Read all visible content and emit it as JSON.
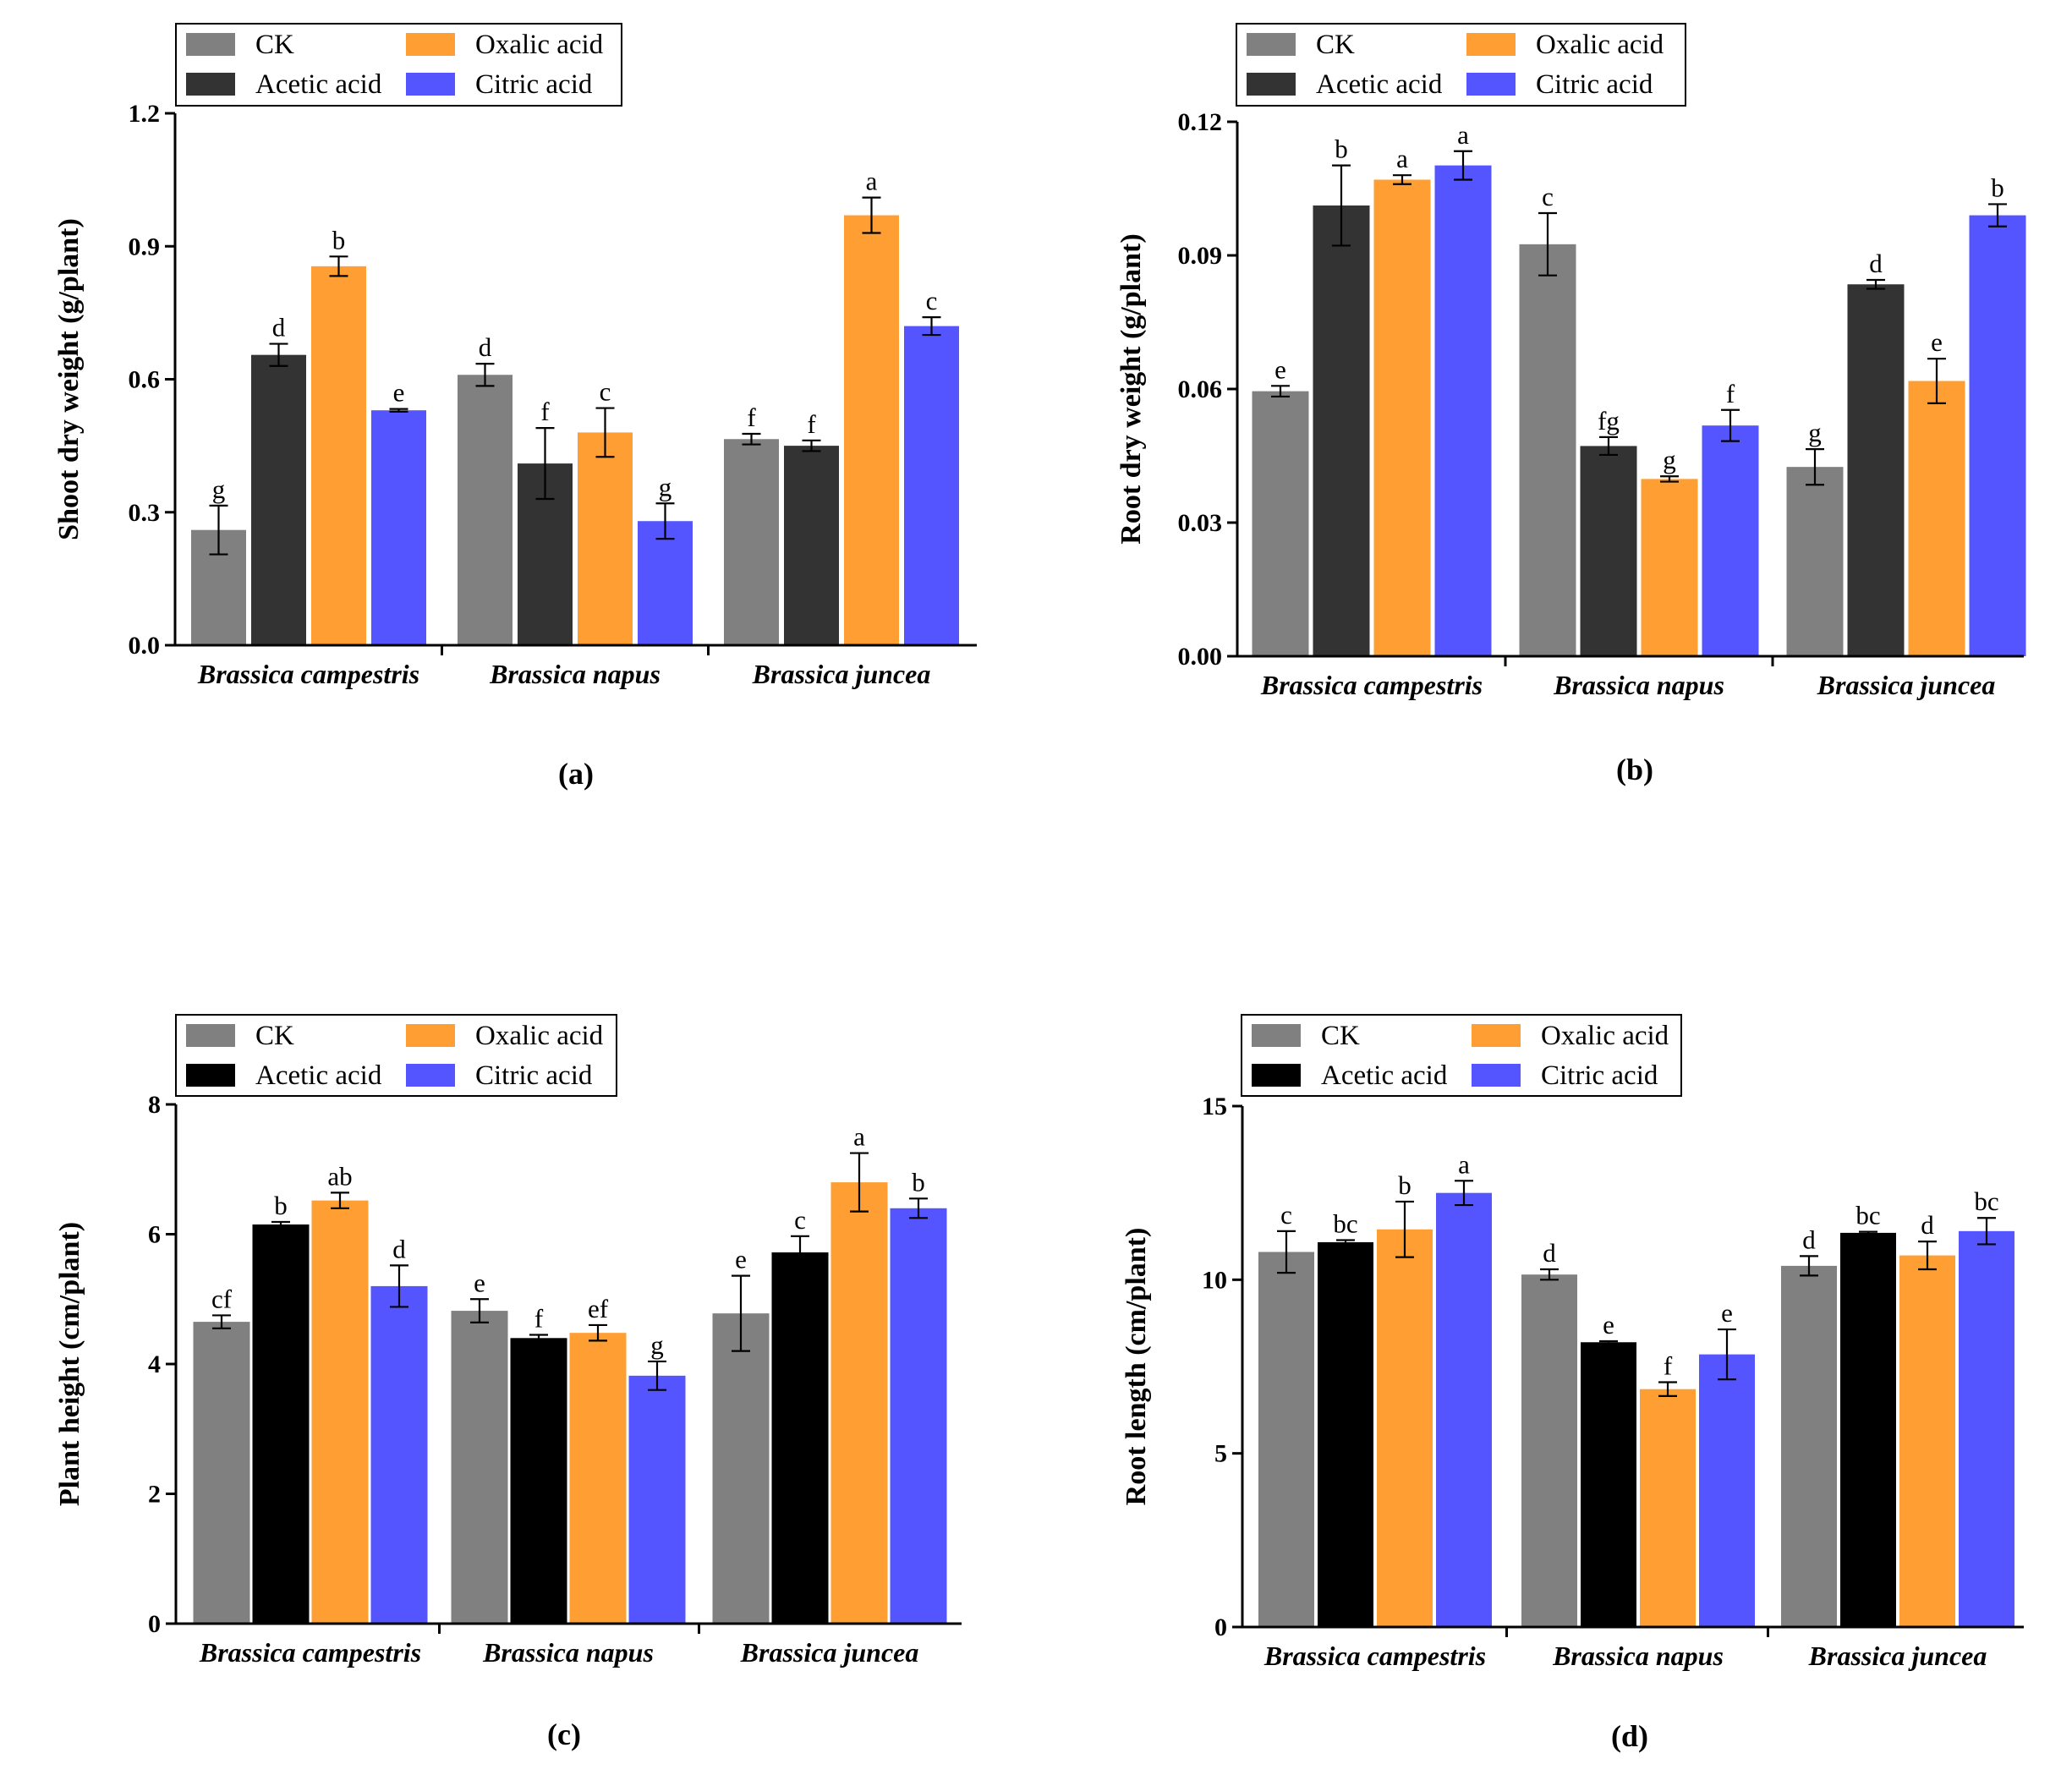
{
  "colors": {
    "gray": "#808080",
    "dark": "#333333",
    "black": "#000000",
    "orange": "#FF9F33",
    "blue": "#5555FF"
  },
  "chart_data": [
    {
      "type": "bar",
      "panel": "(a)",
      "ylabel": "Shoot dry weight (g/plant)",
      "ylim": [
        0,
        1.2
      ],
      "ticks": [
        0.0,
        0.3,
        0.6,
        0.9,
        1.2
      ],
      "tick_labels": [
        "0.0",
        "0.3",
        "0.6",
        "0.9",
        "1.2"
      ],
      "categories": [
        "Brassica campestris",
        "Brassica napus",
        "Brassica juncea"
      ],
      "legend": [
        "CK",
        "Acetic acid",
        "Oxalic acid",
        "Citric acid"
      ],
      "series": [
        {
          "name": "CK",
          "color": "#808080",
          "values": [
            0.26,
            0.61,
            0.465
          ],
          "errors": [
            0.055,
            0.025,
            0.012
          ],
          "letters": [
            "g",
            "d",
            "f"
          ]
        },
        {
          "name": "Acetic acid",
          "color": "#333333",
          "values": [
            0.655,
            0.41,
            0.45
          ],
          "errors": [
            0.025,
            0.08,
            0.012
          ],
          "letters": [
            "d",
            "f",
            "f"
          ]
        },
        {
          "name": "Oxalic acid",
          "color": "#FF9F33",
          "values": [
            0.855,
            0.48,
            0.97
          ],
          "errors": [
            0.022,
            0.055,
            0.04
          ],
          "letters": [
            "b",
            "c",
            "a"
          ]
        },
        {
          "name": "Citric acid",
          "color": "#5555FF",
          "values": [
            0.53,
            0.28,
            0.72
          ],
          "errors": [
            0.003,
            0.04,
            0.02
          ],
          "letters": [
            "e",
            "g",
            "c"
          ]
        }
      ]
    },
    {
      "type": "bar",
      "panel": "(b)",
      "ylabel": "Root dry weight (g/plant)",
      "ylim": [
        0,
        0.12
      ],
      "ticks": [
        0.0,
        0.03,
        0.06,
        0.09,
        0.12
      ],
      "tick_labels": [
        "0.00",
        "0.03",
        "0.06",
        "0.09",
        "0.12"
      ],
      "categories": [
        "Brassica campestris",
        "Brassica napus",
        "Brassica juncea"
      ],
      "legend": [
        "CK",
        "Acetic acid",
        "Oxalic acid",
        "Citric acid"
      ],
      "series": [
        {
          "name": "CK",
          "color": "#808080",
          "values": [
            0.0595,
            0.0925,
            0.0425
          ],
          "errors": [
            0.0012,
            0.007,
            0.004
          ],
          "letters": [
            "e",
            "c",
            "g"
          ]
        },
        {
          "name": "Acetic acid",
          "color": "#333333",
          "values": [
            0.1012,
            0.0472,
            0.0835
          ],
          "errors": [
            0.009,
            0.002,
            0.001
          ],
          "letters": [
            "b",
            "fg",
            "d"
          ]
        },
        {
          "name": "Oxalic acid",
          "color": "#FF9F33",
          "values": [
            0.107,
            0.0398,
            0.0618
          ],
          "errors": [
            0.001,
            0.0006,
            0.005
          ],
          "letters": [
            "a",
            "g",
            "e"
          ]
        },
        {
          "name": "Citric acid",
          "color": "#5555FF",
          "values": [
            0.1102,
            0.0518,
            0.099
          ],
          "errors": [
            0.0032,
            0.0035,
            0.0025
          ],
          "letters": [
            "a",
            "f",
            "b"
          ]
        }
      ]
    },
    {
      "type": "bar",
      "panel": "(c)",
      "ylabel": "Plant height (cm/plant)",
      "ylim": [
        0,
        8
      ],
      "ticks": [
        0,
        2,
        4,
        6,
        8
      ],
      "tick_labels": [
        "0",
        "2",
        "4",
        "6",
        "8"
      ],
      "categories": [
        "Brassica campestris",
        "Brassica napus",
        "Brassica juncea"
      ],
      "legend": [
        "CK",
        "Acetic acid",
        "Oxalic acid",
        "Citric acid"
      ],
      "series": [
        {
          "name": "CK",
          "color": "#808080",
          "values": [
            4.65,
            4.82,
            4.78
          ],
          "errors": [
            0.1,
            0.18,
            0.58
          ],
          "letters": [
            "cf",
            "e",
            "e"
          ]
        },
        {
          "name": "Acetic acid",
          "color": "#000000",
          "values": [
            6.15,
            4.4,
            5.72
          ],
          "errors": [
            0.04,
            0.05,
            0.25
          ],
          "letters": [
            "b",
            "f",
            "c"
          ]
        },
        {
          "name": "Oxalic acid",
          "color": "#FF9F33",
          "values": [
            6.52,
            4.48,
            6.8
          ],
          "errors": [
            0.12,
            0.12,
            0.45
          ],
          "letters": [
            "ab",
            "ef",
            "a"
          ]
        },
        {
          "name": "Citric acid",
          "color": "#5555FF",
          "values": [
            5.2,
            3.82,
            6.4
          ],
          "errors": [
            0.32,
            0.22,
            0.15
          ],
          "letters": [
            "d",
            "g",
            "b"
          ]
        }
      ]
    },
    {
      "type": "bar",
      "panel": "(d)",
      "ylabel": "Root length (cm/plant)",
      "ylim": [
        0,
        15
      ],
      "ticks": [
        0,
        5,
        10,
        15
      ],
      "tick_labels": [
        "0",
        "5",
        "10",
        "15"
      ],
      "categories": [
        "Brassica campestris",
        "Brassica napus",
        "Brassica juncea"
      ],
      "legend": [
        "CK",
        "Acetic acid",
        "Oxalic acid",
        "Citric acid"
      ],
      "series": [
        {
          "name": "CK",
          "color": "#808080",
          "values": [
            10.8,
            10.15,
            10.4
          ],
          "errors": [
            0.6,
            0.15,
            0.28
          ],
          "letters": [
            "c",
            "d",
            "d"
          ]
        },
        {
          "name": "Acetic acid",
          "color": "#000000",
          "values": [
            11.08,
            8.2,
            11.35
          ],
          "errors": [
            0.06,
            0.03,
            0.03
          ],
          "letters": [
            "bc",
            "e",
            "bc"
          ]
        },
        {
          "name": "Oxalic acid",
          "color": "#FF9F33",
          "values": [
            11.45,
            6.85,
            10.7
          ],
          "errors": [
            0.8,
            0.2,
            0.4
          ],
          "letters": [
            "b",
            "f",
            "d"
          ]
        },
        {
          "name": "Citric acid",
          "color": "#5555FF",
          "values": [
            12.5,
            7.85,
            11.4
          ],
          "errors": [
            0.35,
            0.72,
            0.38
          ],
          "letters": [
            "a",
            "e",
            "bc"
          ]
        }
      ]
    }
  ]
}
